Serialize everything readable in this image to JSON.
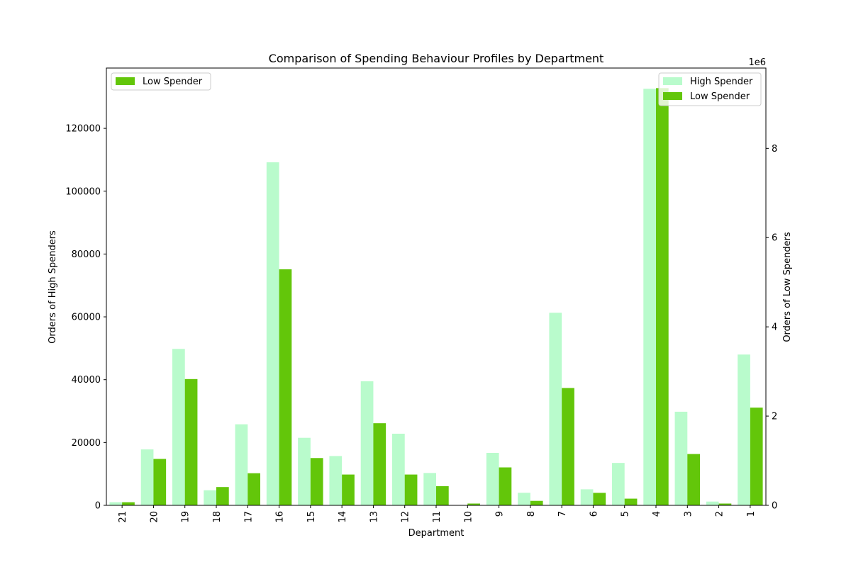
{
  "chart_data": {
    "type": "bar",
    "title": "Comparison of Spending Behaviour Profiles by Department",
    "xlabel": "Department",
    "ylabel_left": "Orders of High Spenders",
    "ylabel_right": "Orders of Low Spenders",
    "right_axis_multiplier": "1e6",
    "categories": [
      "21",
      "20",
      "19",
      "18",
      "17",
      "16",
      "15",
      "14",
      "13",
      "12",
      "11",
      "10",
      "9",
      "8",
      "7",
      "6",
      "5",
      "4",
      "3",
      "2",
      "1"
    ],
    "series": [
      {
        "name": "High Spender",
        "axis": "left",
        "color": "#b9fbcc",
        "values": [
          1000,
          17800,
          49800,
          4800,
          25800,
          109200,
          21500,
          15700,
          39500,
          22800,
          10300,
          100,
          16700,
          4000,
          61300,
          5100,
          13500,
          132600,
          29800,
          1200,
          48000
        ]
      },
      {
        "name": "Low Spender",
        "axis": "right",
        "color": "#63c60a",
        "values": [
          70000,
          1040000,
          2830000,
          410000,
          720000,
          5290000,
          1060000,
          690000,
          1840000,
          690000,
          430000,
          40000,
          850000,
          100000,
          2630000,
          280000,
          150000,
          9350000,
          1150000,
          40000,
          2190000
        ]
      }
    ],
    "ylim_left": [
      0,
      139200
    ],
    "ylim_right": [
      0,
      9800000
    ],
    "yticks_left": [
      "0",
      "20000",
      "40000",
      "60000",
      "80000",
      "100000",
      "120000"
    ],
    "yticks_left_values": [
      0,
      20000,
      40000,
      60000,
      80000,
      100000,
      120000
    ],
    "yticks_right": [
      "0",
      "2",
      "4",
      "6",
      "8"
    ],
    "yticks_right_values": [
      0,
      2000000,
      4000000,
      6000000,
      8000000
    ],
    "legend_left": {
      "position": "upper-left",
      "entries": [
        "Low Spender"
      ]
    },
    "legend_right": {
      "position": "upper-right",
      "entries": [
        "High Spender",
        "Low Spender"
      ]
    },
    "grid": false
  }
}
